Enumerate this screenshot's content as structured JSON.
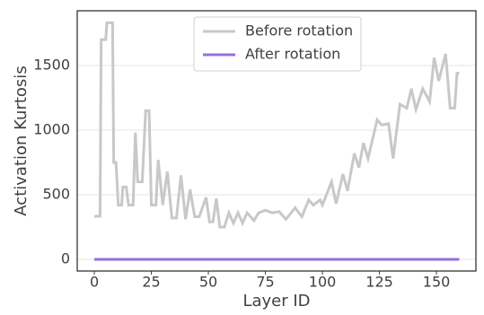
{
  "chart_data": {
    "type": "line",
    "xlabel": "Layer ID",
    "ylabel": "Activation Kurtosis",
    "xlim": [
      -7.5,
      167.3
    ],
    "ylim": [
      -90,
      1923
    ],
    "xticks": [
      0,
      25,
      50,
      75,
      100,
      125,
      150
    ],
    "yticks": [
      0,
      500,
      1000,
      1500
    ],
    "grid": true,
    "legend": "upper center",
    "series": [
      {
        "name": "Before rotation",
        "color": "#c8c8c8",
        "x": [
          0,
          2.5,
          3,
          5,
          5.5,
          8,
          8.5,
          9.5,
          10.5,
          12,
          12.5,
          14,
          15,
          17,
          18,
          19,
          21,
          22.5,
          24,
          25,
          27,
          28,
          30,
          32,
          34,
          36,
          38,
          40,
          42,
          44,
          46,
          49,
          50.5,
          52,
          53.5,
          55,
          57,
          59,
          61,
          63,
          65,
          67,
          70,
          72,
          75,
          78,
          81,
          84,
          88,
          91,
          94,
          96,
          99,
          100,
          104,
          106,
          109,
          111,
          114,
          116,
          118,
          120,
          124,
          126,
          129,
          131,
          134,
          137,
          139,
          141,
          144,
          147,
          149,
          151,
          154,
          156,
          158,
          159,
          160
        ],
        "values": [
          333,
          333,
          1700,
          1700,
          1830,
          1830,
          750,
          750,
          420,
          420,
          560,
          560,
          420,
          420,
          980,
          600,
          600,
          1150,
          1150,
          420,
          420,
          770,
          420,
          680,
          320,
          320,
          650,
          310,
          540,
          330,
          330,
          480,
          290,
          290,
          470,
          250,
          250,
          360,
          280,
          360,
          280,
          360,
          300,
          360,
          380,
          360,
          370,
          310,
          400,
          330,
          460,
          420,
          460,
          420,
          600,
          430,
          660,
          530,
          820,
          710,
          900,
          780,
          1080,
          1040,
          1050,
          780,
          1200,
          1170,
          1320,
          1160,
          1320,
          1220,
          1560,
          1380,
          1590,
          1170,
          1170,
          1440,
          1440
        ]
      },
      {
        "name": "After rotation",
        "color": "#9370db",
        "x": [
          0,
          160
        ],
        "values": [
          0,
          0
        ]
      }
    ]
  }
}
